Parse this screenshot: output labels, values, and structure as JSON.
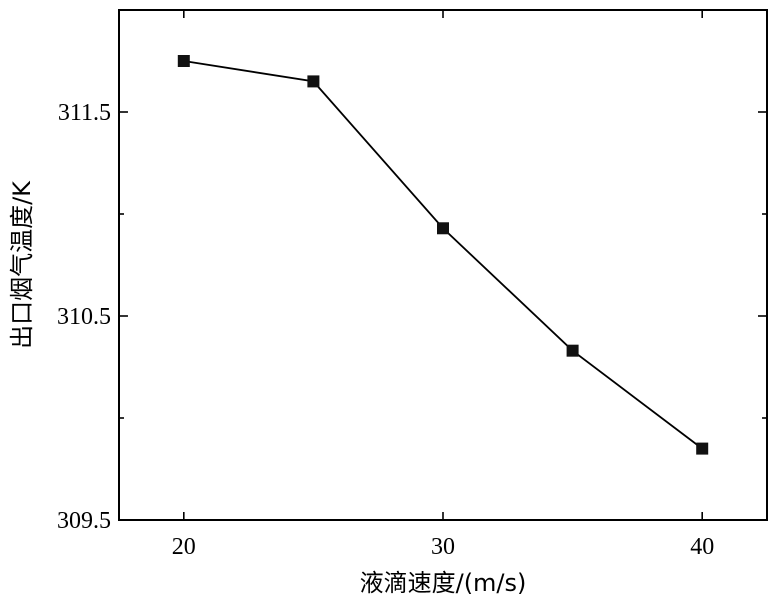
{
  "chart_data": {
    "type": "line",
    "title": "",
    "xlabel": "液滴速度/(m/s)",
    "ylabel": "出口烟气温度/K",
    "x": [
      20,
      25,
      30,
      35,
      40
    ],
    "series": [
      {
        "name": "",
        "values": [
          311.75,
          311.65,
          310.93,
          310.33,
          309.85
        ]
      }
    ],
    "xlim": [
      17.5,
      42.5
    ],
    "ylim": [
      309.5,
      312.0
    ],
    "xticks": [
      20,
      30,
      40
    ],
    "xtick_labels": [
      "20",
      "30",
      "40"
    ],
    "yticks": [
      309.5,
      310.5,
      311.5
    ],
    "ytick_labels": [
      "309.5",
      "310.5",
      "311.5"
    ],
    "minor_yticks": [
      310.0,
      311.0
    ],
    "grid": false,
    "legend": "none",
    "marker": "square",
    "line_color": "#000000"
  }
}
